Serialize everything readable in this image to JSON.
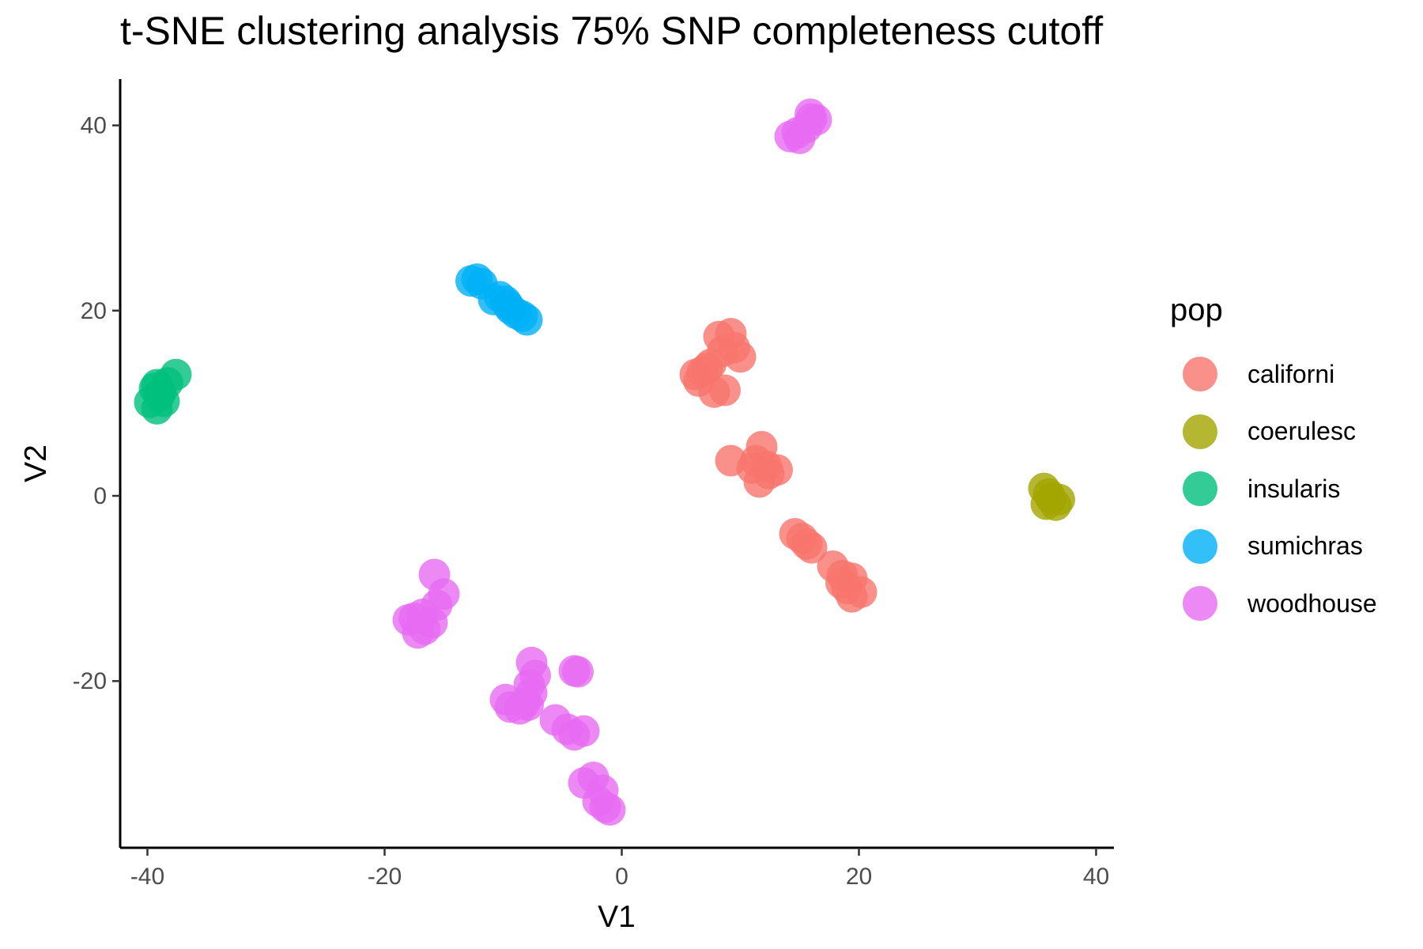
{
  "chart_data": {
    "type": "scatter",
    "title": "t-SNE clustering analysis 75% SNP completeness cutoff",
    "xlabel": "V1",
    "ylabel": "V2",
    "xlim": [
      -42.3,
      41.5
    ],
    "ylim": [
      -38,
      45
    ],
    "x_ticks": [
      -40,
      -20,
      0,
      20,
      40
    ],
    "y_ticks": [
      -20,
      0,
      20,
      40
    ],
    "x_tick_labels": [
      "-40",
      "-20",
      "0",
      "20",
      "40"
    ],
    "y_tick_labels": [
      "-20",
      "0",
      "20",
      "40"
    ],
    "grid": false,
    "legend": {
      "title": "pop",
      "position": "right"
    },
    "series": [
      {
        "name": "californi",
        "color": "#F8766D",
        "points": [
          [
            8.2,
            17.2
          ],
          [
            9.2,
            17.5
          ],
          [
            9.5,
            16.0
          ],
          [
            10.0,
            15.0
          ],
          [
            8.5,
            15.6
          ],
          [
            7.5,
            14.2
          ],
          [
            6.8,
            13.4
          ],
          [
            6.2,
            13.1
          ],
          [
            6.5,
            12.4
          ],
          [
            7.8,
            11.2
          ],
          [
            8.7,
            11.4
          ],
          [
            7.2,
            13.8
          ],
          [
            11.8,
            5.3
          ],
          [
            9.2,
            3.8
          ],
          [
            11.0,
            3.0
          ],
          [
            12.2,
            3.2
          ],
          [
            13.1,
            2.8
          ],
          [
            11.6,
            1.5
          ],
          [
            12.4,
            2.4
          ],
          [
            11.3,
            3.8
          ],
          [
            14.6,
            -4.1
          ],
          [
            15.2,
            -4.6
          ],
          [
            16.0,
            -5.6
          ],
          [
            15.6,
            -5.2
          ],
          [
            17.8,
            -7.6
          ],
          [
            18.6,
            -8.6
          ],
          [
            19.4,
            -8.9
          ],
          [
            18.5,
            -9.4
          ],
          [
            19.0,
            -10.0
          ],
          [
            20.2,
            -10.4
          ],
          [
            19.4,
            -10.9
          ]
        ]
      },
      {
        "name": "coerulesc",
        "color": "#A3A500",
        "points": [
          [
            35.6,
            0.8
          ],
          [
            36.0,
            0.2
          ],
          [
            36.9,
            -0.4
          ],
          [
            35.8,
            -0.9
          ],
          [
            36.6,
            -1.0
          ],
          [
            36.2,
            -0.3
          ]
        ]
      },
      {
        "name": "insularis",
        "color": "#00BF7D",
        "points": [
          [
            -37.6,
            13.1
          ],
          [
            -38.3,
            12.2
          ],
          [
            -39.2,
            12.0
          ],
          [
            -38.9,
            11.1
          ],
          [
            -39.4,
            11.6
          ],
          [
            -39.8,
            10.1
          ],
          [
            -39.2,
            9.4
          ],
          [
            -39.0,
            10.8
          ],
          [
            -38.6,
            10.2
          ]
        ]
      },
      {
        "name": "sumichras",
        "color": "#00B0F6",
        "points": [
          [
            -12.7,
            23.2
          ],
          [
            -12.2,
            23.4
          ],
          [
            -11.8,
            22.9
          ],
          [
            -10.3,
            21.5
          ],
          [
            -9.8,
            21.0
          ],
          [
            -10.8,
            21.2
          ],
          [
            -9.4,
            20.2
          ],
          [
            -8.9,
            19.7
          ],
          [
            -8.4,
            19.4
          ],
          [
            -8.0,
            19.0
          ],
          [
            -9.6,
            20.6
          ]
        ]
      },
      {
        "name": "woodhouse",
        "color": "#E76BF3",
        "points": [
          [
            14.2,
            38.8
          ],
          [
            14.8,
            39.2
          ],
          [
            15.6,
            39.8
          ],
          [
            16.0,
            40.7
          ],
          [
            16.4,
            40.6
          ],
          [
            15.0,
            38.6
          ],
          [
            15.9,
            41.2
          ],
          [
            -15.8,
            -8.5
          ],
          [
            -15.0,
            -10.6
          ],
          [
            -15.6,
            -11.8
          ],
          [
            -16.8,
            -12.8
          ],
          [
            -17.5,
            -13.2
          ],
          [
            -18.0,
            -13.4
          ],
          [
            -16.0,
            -13.7
          ],
          [
            -16.6,
            -14.4
          ],
          [
            -17.2,
            -14.8
          ],
          [
            -7.6,
            -18.0
          ],
          [
            -7.3,
            -19.4
          ],
          [
            -4.0,
            -18.9
          ],
          [
            -3.7,
            -19.0
          ],
          [
            -7.8,
            -20.4
          ],
          [
            -7.6,
            -21.3
          ],
          [
            -9.8,
            -22.0
          ],
          [
            -9.4,
            -22.8
          ],
          [
            -8.6,
            -23.0
          ],
          [
            -7.9,
            -22.6
          ],
          [
            -8.2,
            -22.4
          ],
          [
            -5.6,
            -24.2
          ],
          [
            -4.6,
            -25.2
          ],
          [
            -3.2,
            -25.4
          ],
          [
            -4.0,
            -25.8
          ],
          [
            -3.2,
            -31.0
          ],
          [
            -2.4,
            -30.4
          ],
          [
            -1.6,
            -31.8
          ],
          [
            -2.0,
            -33.0
          ],
          [
            -1.4,
            -33.6
          ],
          [
            -1.0,
            -33.9
          ]
        ]
      }
    ]
  }
}
